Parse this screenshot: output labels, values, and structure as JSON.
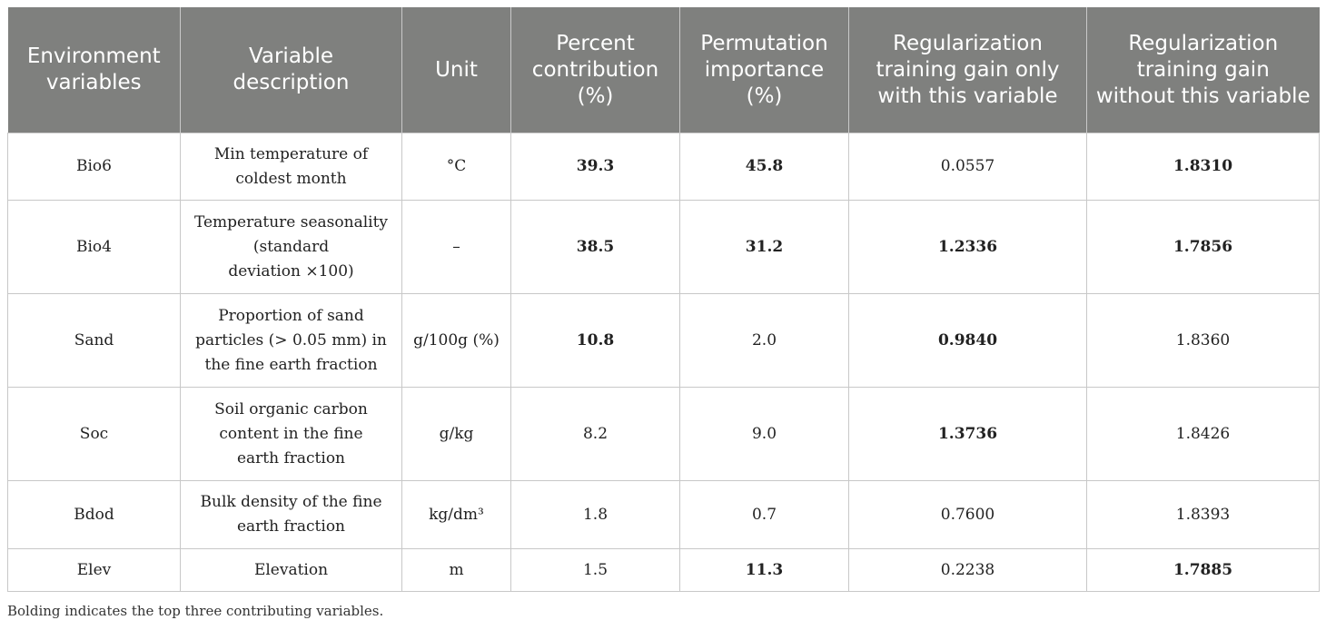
{
  "table": {
    "headers": [
      "Environment variables",
      "Variable description",
      "Unit",
      "Percent contribution (%)",
      "Permutation importance (%)",
      "Regularization training gain only with this variable",
      "Regularization training gain without this variable"
    ],
    "rows": [
      {
        "variable": "Bio6",
        "description": "Min temperature of\ncoldest month",
        "unit": "°C",
        "percent_contribution": "39.3",
        "permutation_importance": "45.8",
        "gain_only": "0.0557",
        "gain_without": "1.8310"
      },
      {
        "variable": "Bio4",
        "description": "Temperature seasonality\n(standard\ndeviation ×100)",
        "unit": "–",
        "percent_contribution": "38.5",
        "permutation_importance": "31.2",
        "gain_only": "1.2336",
        "gain_without": "1.7856"
      },
      {
        "variable": "Sand",
        "description": "Proportion of sand\nparticles (> 0.05 mm) in\nthe fine earth fraction",
        "unit": "g/100g (%)",
        "percent_contribution": "10.8",
        "permutation_importance": "2.0",
        "gain_only": "0.9840",
        "gain_without": "1.8360"
      },
      {
        "variable": "Soc",
        "description": "Soil organic carbon\ncontent in the fine\nearth fraction",
        "unit": "g/kg",
        "percent_contribution": "8.2",
        "permutation_importance": "9.0",
        "gain_only": "1.3736",
        "gain_without": "1.8426"
      },
      {
        "variable": "Bdod",
        "description": "Bulk density of the fine\nearth fraction",
        "unit": "kg/dm³",
        "percent_contribution": "1.8",
        "permutation_importance": "0.7",
        "gain_only": "0.7600",
        "gain_without": "1.8393"
      },
      {
        "variable": "Elev",
        "description": "Elevation",
        "unit": "m",
        "percent_contribution": "1.5",
        "permutation_importance": "11.3",
        "gain_only": "0.2238",
        "gain_without": "1.7885"
      }
    ]
  },
  "footnote": "Bolding indicates the top three contributing variables."
}
